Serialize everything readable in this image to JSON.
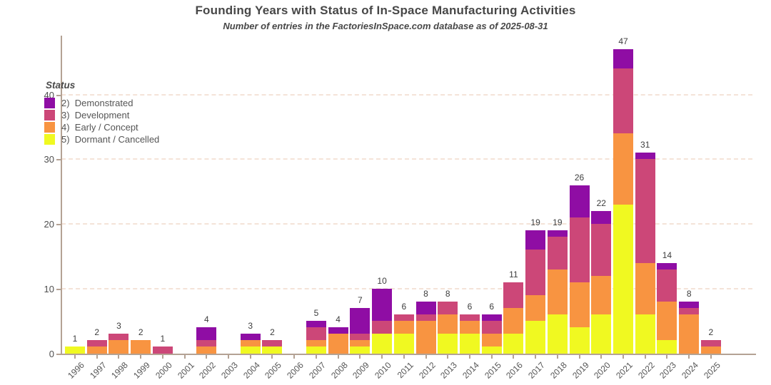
{
  "title": "Founding Years with Status of In-Space Manufacturing Activities",
  "subtitle": "Number of entries in the FactoriesInSpace.com database as of 2025-08-31",
  "legend": {
    "title": "Status",
    "items": [
      {
        "label": "2)  Demonstrated",
        "color": "#8f0da4"
      },
      {
        "label": "3)  Development",
        "color": "#cc4778"
      },
      {
        "label": "4)  Early / Concept",
        "color": "#f89441"
      },
      {
        "label": "5)  Dormant / Cancelled",
        "color": "#f0f921"
      }
    ]
  },
  "chart_data": {
    "type": "bar",
    "stacked": true,
    "title": "Founding Years with Status of In-Space Manufacturing Activities",
    "subtitle": "Number of entries in the FactoriesInSpace.com database as of 2025-08-31",
    "xlabel": "",
    "ylabel": "",
    "ylim": [
      0,
      48.5
    ],
    "y_ticks": [
      0,
      10,
      20,
      30,
      40
    ],
    "grid": "horizontal-dashed",
    "legend_position": "upper-left-inside",
    "categories": [
      "1996",
      "1997",
      "1998",
      "1999",
      "2000",
      "2001",
      "2002",
      "2003",
      "2004",
      "2005",
      "2006",
      "2007",
      "2008",
      "2009",
      "2010",
      "2011",
      "2012",
      "2013",
      "2014",
      "2015",
      "2016",
      "2017",
      "2018",
      "2019",
      "2020",
      "2021",
      "2022",
      "2023",
      "2024",
      "2025"
    ],
    "series": [
      {
        "name": "2)  Demonstrated",
        "color": "#8f0da4",
        "values": [
          0,
          0,
          0,
          0,
          0,
          0,
          2,
          0,
          1,
          0,
          0,
          1,
          1,
          4,
          5,
          0,
          2,
          0,
          0,
          1,
          0,
          3,
          1,
          5,
          2,
          3,
          1,
          1,
          1,
          0
        ]
      },
      {
        "name": "3)  Development",
        "color": "#cc4778",
        "values": [
          0,
          1,
          1,
          0,
          1,
          0,
          1,
          0,
          0,
          1,
          0,
          2,
          0,
          1,
          2,
          1,
          1,
          2,
          1,
          2,
          4,
          7,
          5,
          10,
          8,
          10,
          16,
          5,
          1,
          1
        ]
      },
      {
        "name": "4)  Early / Concept",
        "color": "#f89441",
        "values": [
          0,
          1,
          2,
          2,
          0,
          0,
          1,
          0,
          1,
          0,
          0,
          1,
          3,
          1,
          0,
          2,
          5,
          3,
          2,
          2,
          4,
          4,
          7,
          7,
          6,
          11,
          8,
          6,
          6,
          1
        ]
      },
      {
        "name": "5)  Dormant / Cancelled",
        "color": "#f0f921",
        "values": [
          1,
          0,
          0,
          0,
          0,
          0,
          0,
          0,
          1,
          1,
          0,
          1,
          0,
          1,
          3,
          3,
          0,
          3,
          3,
          1,
          3,
          5,
          6,
          4,
          6,
          23,
          6,
          2,
          0,
          0
        ]
      }
    ],
    "totals": [
      1,
      2,
      3,
      2,
      1,
      0,
      4,
      0,
      3,
      2,
      0,
      5,
      4,
      7,
      10,
      6,
      8,
      8,
      6,
      6,
      11,
      19,
      19,
      26,
      22,
      47,
      31,
      14,
      8,
      2
    ]
  }
}
